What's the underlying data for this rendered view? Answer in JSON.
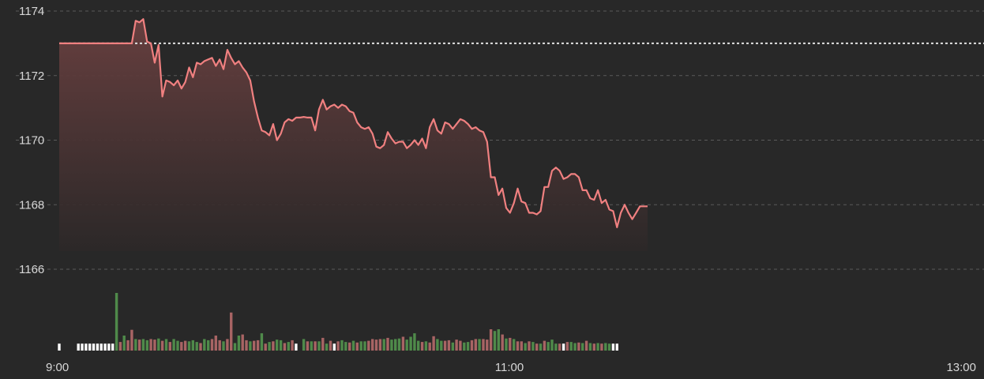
{
  "chart_data": {
    "type": "line",
    "title": "",
    "xlabel": "",
    "ylabel": "",
    "ylim": [
      1166,
      1174
    ],
    "y_ticks": [
      "1174",
      "1172",
      "1170",
      "1168",
      "1166"
    ],
    "x_ticks": [
      "9:00",
      "11:00",
      "13:00"
    ],
    "reference_price": 1173.0,
    "colors": {
      "price_line": "#f08080",
      "reference_line": "#e0e0e0",
      "grid": "#5a5a5a",
      "volume_up": "#4f8a4a",
      "volume_down": "#a86464",
      "volume_flat": "#ffffff"
    },
    "price_points": [
      [
        0,
        1173.0
      ],
      [
        19,
        1173.0
      ],
      [
        20,
        1173.7
      ],
      [
        21,
        1173.65
      ],
      [
        22,
        1173.75
      ],
      [
        23,
        1173.05
      ],
      [
        24,
        1173.0
      ],
      [
        25,
        1172.4
      ],
      [
        26,
        1172.95
      ],
      [
        27,
        1171.35
      ],
      [
        28,
        1171.85
      ],
      [
        29,
        1171.8
      ],
      [
        30,
        1171.7
      ],
      [
        31,
        1171.85
      ],
      [
        32,
        1171.6
      ],
      [
        33,
        1171.8
      ],
      [
        34,
        1172.25
      ],
      [
        35,
        1171.95
      ],
      [
        36,
        1172.4
      ],
      [
        37,
        1172.35
      ],
      [
        38,
        1172.45
      ],
      [
        39,
        1172.5
      ],
      [
        40,
        1172.55
      ],
      [
        41,
        1172.3
      ],
      [
        42,
        1172.5
      ],
      [
        43,
        1172.2
      ],
      [
        44,
        1172.8
      ],
      [
        45,
        1172.55
      ],
      [
        46,
        1172.35
      ],
      [
        47,
        1172.45
      ],
      [
        48,
        1172.25
      ],
      [
        49,
        1172.1
      ],
      [
        50,
        1171.85
      ],
      [
        51,
        1171.2
      ],
      [
        52,
        1170.7
      ],
      [
        53,
        1170.3
      ],
      [
        54,
        1170.25
      ],
      [
        55,
        1170.15
      ],
      [
        56,
        1170.5
      ],
      [
        57,
        1170.0
      ],
      [
        58,
        1170.2
      ],
      [
        59,
        1170.55
      ],
      [
        60,
        1170.65
      ],
      [
        61,
        1170.6
      ],
      [
        62,
        1170.7
      ],
      [
        63,
        1170.7
      ],
      [
        64,
        1170.72
      ],
      [
        65,
        1170.7
      ],
      [
        66,
        1170.7
      ],
      [
        67,
        1170.3
      ],
      [
        68,
        1170.95
      ],
      [
        69,
        1171.25
      ],
      [
        70,
        1170.95
      ],
      [
        71,
        1171.05
      ],
      [
        72,
        1171.1
      ],
      [
        73,
        1171.0
      ],
      [
        74,
        1171.1
      ],
      [
        75,
        1171.05
      ],
      [
        76,
        1170.9
      ],
      [
        77,
        1170.85
      ],
      [
        78,
        1170.55
      ],
      [
        79,
        1170.4
      ],
      [
        80,
        1170.35
      ],
      [
        81,
        1170.4
      ],
      [
        82,
        1170.2
      ],
      [
        83,
        1169.8
      ],
      [
        84,
        1169.75
      ],
      [
        85,
        1169.85
      ],
      [
        86,
        1170.25
      ],
      [
        87,
        1170.05
      ],
      [
        88,
        1169.9
      ],
      [
        89,
        1169.95
      ],
      [
        90,
        1169.95
      ],
      [
        91,
        1169.75
      ],
      [
        92,
        1169.85
      ],
      [
        93,
        1170.0
      ],
      [
        94,
        1169.85
      ],
      [
        95,
        1170.05
      ],
      [
        96,
        1169.75
      ],
      [
        97,
        1170.4
      ],
      [
        98,
        1170.65
      ],
      [
        99,
        1170.3
      ],
      [
        100,
        1170.2
      ],
      [
        101,
        1170.55
      ],
      [
        102,
        1170.5
      ],
      [
        103,
        1170.35
      ],
      [
        104,
        1170.5
      ],
      [
        105,
        1170.65
      ],
      [
        106,
        1170.6
      ],
      [
        107,
        1170.5
      ],
      [
        108,
        1170.35
      ],
      [
        109,
        1170.4
      ],
      [
        110,
        1170.3
      ],
      [
        111,
        1170.25
      ],
      [
        112,
        1169.95
      ],
      [
        113,
        1168.85
      ],
      [
        114,
        1168.85
      ],
      [
        115,
        1168.3
      ],
      [
        116,
        1168.5
      ],
      [
        117,
        1167.9
      ],
      [
        118,
        1167.75
      ],
      [
        119,
        1168.05
      ],
      [
        120,
        1168.5
      ],
      [
        121,
        1168.1
      ],
      [
        122,
        1168.05
      ],
      [
        123,
        1167.75
      ],
      [
        124,
        1167.75
      ],
      [
        125,
        1167.7
      ],
      [
        126,
        1167.8
      ],
      [
        127,
        1168.55
      ],
      [
        128,
        1168.55
      ],
      [
        129,
        1169.05
      ],
      [
        130,
        1169.15
      ],
      [
        131,
        1169.05
      ],
      [
        132,
        1168.8
      ],
      [
        133,
        1168.85
      ],
      [
        134,
        1168.95
      ],
      [
        135,
        1168.95
      ],
      [
        136,
        1168.85
      ],
      [
        137,
        1168.45
      ],
      [
        138,
        1168.45
      ],
      [
        139,
        1168.2
      ],
      [
        140,
        1168.15
      ],
      [
        141,
        1168.45
      ],
      [
        142,
        1168.05
      ],
      [
        143,
        1168.15
      ],
      [
        144,
        1167.85
      ],
      [
        145,
        1167.8
      ],
      [
        146,
        1167.3
      ],
      [
        147,
        1167.75
      ],
      [
        148,
        1168.0
      ],
      [
        149,
        1167.75
      ],
      [
        150,
        1167.55
      ],
      [
        151,
        1167.75
      ],
      [
        152,
        1167.95
      ],
      [
        153,
        1167.95
      ],
      [
        154,
        1167.95
      ]
    ],
    "volume_bars": [
      [
        0,
        0.12,
        "flat"
      ],
      [
        5,
        0.12,
        "flat"
      ],
      [
        6,
        0.12,
        "flat"
      ],
      [
        7,
        0.12,
        "flat"
      ],
      [
        8,
        0.12,
        "flat"
      ],
      [
        9,
        0.12,
        "flat"
      ],
      [
        10,
        0.12,
        "flat"
      ],
      [
        11,
        0.12,
        "flat"
      ],
      [
        12,
        0.12,
        "flat"
      ],
      [
        13,
        0.12,
        "flat"
      ],
      [
        14,
        0.12,
        "flat"
      ],
      [
        15,
        1.0,
        "up"
      ],
      [
        16,
        0.15,
        "down"
      ],
      [
        17,
        0.26,
        "up"
      ],
      [
        18,
        0.18,
        "down"
      ],
      [
        19,
        0.36,
        "down"
      ],
      [
        20,
        0.2,
        "up"
      ],
      [
        21,
        0.19,
        "down"
      ],
      [
        22,
        0.2,
        "up"
      ],
      [
        23,
        0.18,
        "up"
      ],
      [
        24,
        0.2,
        "down"
      ],
      [
        25,
        0.19,
        "down"
      ],
      [
        26,
        0.21,
        "up"
      ],
      [
        27,
        0.17,
        "down"
      ],
      [
        28,
        0.2,
        "up"
      ],
      [
        29,
        0.15,
        "down"
      ],
      [
        30,
        0.2,
        "up"
      ],
      [
        31,
        0.17,
        "up"
      ],
      [
        32,
        0.15,
        "down"
      ],
      [
        33,
        0.17,
        "down"
      ],
      [
        34,
        0.16,
        "up"
      ],
      [
        35,
        0.18,
        "up"
      ],
      [
        36,
        0.15,
        "up"
      ],
      [
        37,
        0.13,
        "down"
      ],
      [
        38,
        0.2,
        "up"
      ],
      [
        39,
        0.18,
        "up"
      ],
      [
        40,
        0.2,
        "down"
      ],
      [
        41,
        0.26,
        "down"
      ],
      [
        42,
        0.18,
        "down"
      ],
      [
        43,
        0.16,
        "up"
      ],
      [
        44,
        0.2,
        "down"
      ],
      [
        45,
        0.66,
        "down"
      ],
      [
        46,
        0.13,
        "up"
      ],
      [
        47,
        0.26,
        "up"
      ],
      [
        48,
        0.28,
        "down"
      ],
      [
        49,
        0.18,
        "down"
      ],
      [
        50,
        0.16,
        "up"
      ],
      [
        51,
        0.17,
        "down"
      ],
      [
        52,
        0.18,
        "down"
      ],
      [
        53,
        0.3,
        "up"
      ],
      [
        54,
        0.12,
        "down"
      ],
      [
        55,
        0.15,
        "up"
      ],
      [
        56,
        0.16,
        "down"
      ],
      [
        57,
        0.19,
        "up"
      ],
      [
        58,
        0.18,
        "up"
      ],
      [
        59,
        0.13,
        "down"
      ],
      [
        60,
        0.15,
        "up"
      ],
      [
        61,
        0.18,
        "down"
      ],
      [
        62,
        0.12,
        "flat"
      ],
      [
        64,
        0.2,
        "up"
      ],
      [
        65,
        0.16,
        "down"
      ],
      [
        66,
        0.16,
        "up"
      ],
      [
        67,
        0.16,
        "down"
      ],
      [
        68,
        0.16,
        "up"
      ],
      [
        69,
        0.22,
        "down"
      ],
      [
        70,
        0.12,
        "up"
      ],
      [
        71,
        0.17,
        "down"
      ],
      [
        72,
        0.12,
        "flat"
      ],
      [
        73,
        0.16,
        "down"
      ],
      [
        74,
        0.18,
        "up"
      ],
      [
        75,
        0.15,
        "up"
      ],
      [
        76,
        0.14,
        "down"
      ],
      [
        77,
        0.17,
        "up"
      ],
      [
        78,
        0.14,
        "down"
      ],
      [
        79,
        0.16,
        "up"
      ],
      [
        80,
        0.16,
        "up"
      ],
      [
        81,
        0.17,
        "down"
      ],
      [
        82,
        0.2,
        "down"
      ],
      [
        83,
        0.19,
        "down"
      ],
      [
        84,
        0.2,
        "down"
      ],
      [
        85,
        0.2,
        "up"
      ],
      [
        86,
        0.22,
        "down"
      ],
      [
        87,
        0.19,
        "up"
      ],
      [
        88,
        0.2,
        "up"
      ],
      [
        89,
        0.21,
        "up"
      ],
      [
        90,
        0.24,
        "down"
      ],
      [
        91,
        0.19,
        "up"
      ],
      [
        92,
        0.24,
        "up"
      ],
      [
        93,
        0.3,
        "up"
      ],
      [
        94,
        0.17,
        "up"
      ],
      [
        95,
        0.15,
        "down"
      ],
      [
        96,
        0.16,
        "up"
      ],
      [
        97,
        0.14,
        "down"
      ],
      [
        98,
        0.25,
        "down"
      ],
      [
        99,
        0.2,
        "up"
      ],
      [
        100,
        0.17,
        "up"
      ],
      [
        101,
        0.17,
        "down"
      ],
      [
        102,
        0.18,
        "down"
      ],
      [
        103,
        0.14,
        "up"
      ],
      [
        104,
        0.19,
        "down"
      ],
      [
        105,
        0.17,
        "down"
      ],
      [
        106,
        0.14,
        "up"
      ],
      [
        107,
        0.15,
        "up"
      ],
      [
        108,
        0.18,
        "down"
      ],
      [
        109,
        0.2,
        "down"
      ],
      [
        110,
        0.2,
        "up"
      ],
      [
        111,
        0.2,
        "down"
      ],
      [
        112,
        0.19,
        "down"
      ],
      [
        113,
        0.37,
        "down"
      ],
      [
        114,
        0.34,
        "up"
      ],
      [
        115,
        0.37,
        "up"
      ],
      [
        116,
        0.28,
        "down"
      ],
      [
        117,
        0.21,
        "up"
      ],
      [
        118,
        0.22,
        "down"
      ],
      [
        119,
        0.2,
        "up"
      ],
      [
        120,
        0.16,
        "down"
      ],
      [
        121,
        0.16,
        "down"
      ],
      [
        122,
        0.13,
        "up"
      ],
      [
        123,
        0.16,
        "down"
      ],
      [
        124,
        0.15,
        "up"
      ],
      [
        125,
        0.12,
        "down"
      ],
      [
        126,
        0.12,
        "up"
      ],
      [
        127,
        0.17,
        "down"
      ],
      [
        128,
        0.15,
        "up"
      ],
      [
        129,
        0.19,
        "up"
      ],
      [
        130,
        0.12,
        "up"
      ],
      [
        131,
        0.12,
        "down"
      ],
      [
        132,
        0.12,
        "flat"
      ],
      [
        133,
        0.15,
        "down"
      ],
      [
        134,
        0.15,
        "up"
      ],
      [
        135,
        0.13,
        "up"
      ],
      [
        136,
        0.14,
        "down"
      ],
      [
        137,
        0.13,
        "up"
      ],
      [
        138,
        0.17,
        "down"
      ],
      [
        139,
        0.13,
        "up"
      ],
      [
        140,
        0.12,
        "down"
      ],
      [
        141,
        0.13,
        "up"
      ],
      [
        142,
        0.12,
        "down"
      ],
      [
        143,
        0.13,
        "up"
      ],
      [
        144,
        0.12,
        "up"
      ],
      [
        145,
        0.12,
        "flat"
      ],
      [
        146,
        0.12,
        "flat"
      ]
    ]
  }
}
